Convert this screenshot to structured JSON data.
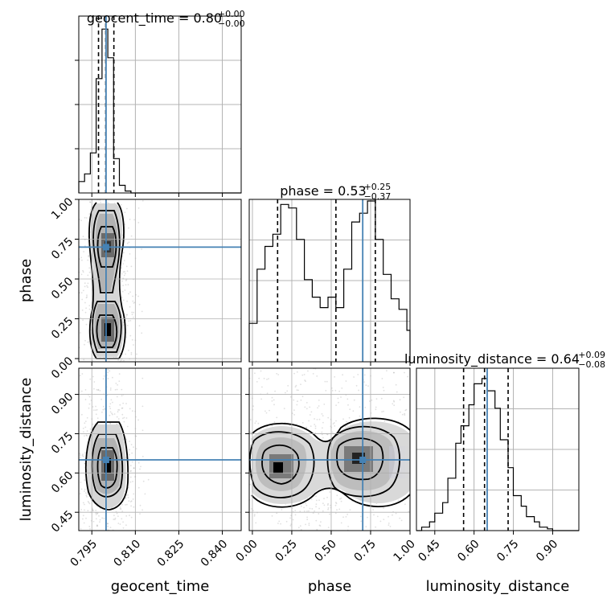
{
  "chart_data": {
    "type": "corner",
    "parameters": [
      "geocent_time",
      "phase",
      "luminosity_distance"
    ],
    "truths": {
      "geocent_time": 0.7999,
      "phase": 0.7,
      "luminosity_distance": 0.65
    },
    "titles": [
      {
        "param": "geocent_time",
        "text": "geocent_time = 0.80",
        "plus": "+0.00",
        "minus": "−0.00"
      },
      {
        "param": "phase",
        "text": "phase = 0.53",
        "plus": "+0.25",
        "minus": "−0.37"
      },
      {
        "param": "luminosity_distance",
        "text": "luminosity_distance = 0.64",
        "plus": "+0.09",
        "minus": "−0.08"
      }
    ],
    "axes": {
      "geocent_time": {
        "range": [
          0.7905,
          0.8465
        ],
        "ticks": [
          "0.795",
          "0.810",
          "0.825",
          "0.840"
        ],
        "tick_values": [
          0.795,
          0.81,
          0.825,
          0.84
        ],
        "label": "geocent_time"
      },
      "phase": {
        "range": [
          -0.02,
          1.0
        ],
        "ticks": [
          "0.00",
          "0.25",
          "0.50",
          "0.75",
          "1.00"
        ],
        "tick_values": [
          0.0,
          0.25,
          0.5,
          0.75,
          1.0
        ],
        "label": "phase"
      },
      "luminosity_distance": {
        "range": [
          0.38,
          1.0
        ],
        "ticks": [
          "0.45",
          "0.60",
          "0.75",
          "0.90"
        ],
        "tick_values": [
          0.45,
          0.6,
          0.75,
          0.9
        ],
        "label": "luminosity_distance"
      }
    },
    "histograms": {
      "geocent_time": {
        "edges": [
          0.7905,
          0.7925,
          0.7945,
          0.7965,
          0.7985,
          0.8005,
          0.8025,
          0.8045,
          0.8065,
          0.8085,
          0.8105,
          0.8125,
          0.8465
        ],
        "counts": [
          0.06,
          0.1,
          0.21,
          0.6,
          0.86,
          0.71,
          0.18,
          0.04,
          0.01,
          0.0,
          0.0,
          0.0
        ],
        "quantiles": [
          0.7973,
          0.7998,
          0.8026
        ]
      },
      "phase": {
        "edges": [
          -0.02,
          0.03,
          0.08,
          0.13,
          0.18,
          0.23,
          0.28,
          0.33,
          0.38,
          0.43,
          0.48,
          0.53,
          0.58,
          0.63,
          0.68,
          0.73,
          0.78,
          0.83,
          0.88,
          0.93,
          0.98,
          1.0
        ],
        "counts": [
          0.22,
          0.53,
          0.66,
          0.73,
          0.9,
          0.88,
          0.7,
          0.47,
          0.37,
          0.31,
          0.37,
          0.31,
          0.53,
          0.8,
          0.85,
          0.92,
          0.7,
          0.5,
          0.36,
          0.3,
          0.18
        ],
        "quantiles": [
          0.16,
          0.53,
          0.78
        ]
      },
      "luminosity_distance": {
        "edges": [
          0.38,
          0.4,
          0.43,
          0.45,
          0.48,
          0.5,
          0.53,
          0.55,
          0.58,
          0.6,
          0.63,
          0.65,
          0.68,
          0.7,
          0.73,
          0.75,
          0.78,
          0.8,
          0.83,
          0.85,
          0.88,
          0.9,
          1.0
        ],
        "counts": [
          0.0,
          0.02,
          0.05,
          0.1,
          0.16,
          0.3,
          0.5,
          0.6,
          0.72,
          0.84,
          0.87,
          0.8,
          0.7,
          0.52,
          0.36,
          0.2,
          0.14,
          0.08,
          0.05,
          0.02,
          0.01,
          0.0
        ],
        "quantiles": [
          0.56,
          0.64,
          0.73
        ]
      }
    }
  }
}
